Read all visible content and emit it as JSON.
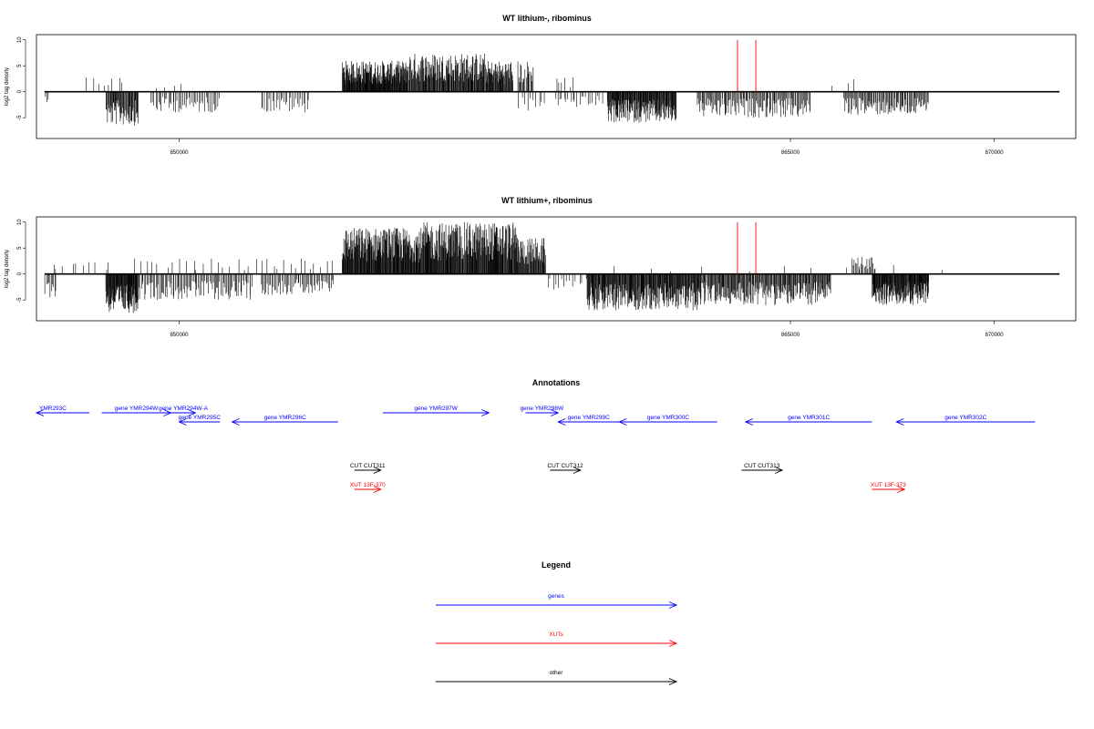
{
  "colors": {
    "genes": "#0000ff",
    "xuts": "#ff0000",
    "other": "#000000",
    "highlight": "#ff0000"
  },
  "chart_data": [
    {
      "type": "bar",
      "title": "WT lithium-, ribominus",
      "ylabel": "log2 tag density",
      "xlim": [
        846500,
        872000
      ],
      "ylim": [
        -9,
        11
      ],
      "yticks": [
        -5,
        0,
        5,
        10
      ],
      "xticks": [
        850000,
        865000,
        870000
      ],
      "xtick_labels": [
        "850000",
        "865000",
        "870000"
      ],
      "highlight_lines": [
        863700,
        864150
      ],
      "regions": [
        {
          "start": 846700,
          "end": 846800,
          "strand": -1,
          "amp": 2,
          "density": 3
        },
        {
          "start": 847700,
          "end": 848700,
          "strand": 1,
          "amp": 3,
          "density": 8
        },
        {
          "start": 848200,
          "end": 849000,
          "strand": -1,
          "amp": 6.5,
          "density": 55
        },
        {
          "start": 849300,
          "end": 850200,
          "strand": 1,
          "amp": 2,
          "density": 4
        },
        {
          "start": 849300,
          "end": 851000,
          "strand": -1,
          "amp": 4,
          "density": 48
        },
        {
          "start": 852000,
          "end": 853200,
          "strand": -1,
          "amp": 4,
          "density": 30
        },
        {
          "start": 854000,
          "end": 855600,
          "strand": 1,
          "amp": 6,
          "density": 170
        },
        {
          "start": 855600,
          "end": 857500,
          "strand": 1,
          "amp": 7.5,
          "density": 150
        },
        {
          "start": 857500,
          "end": 858200,
          "strand": 1,
          "amp": 6,
          "density": 60
        },
        {
          "start": 858300,
          "end": 858700,
          "strand": 1,
          "amp": 6,
          "density": 18
        },
        {
          "start": 858300,
          "end": 859000,
          "strand": -1,
          "amp": 4,
          "density": 10
        },
        {
          "start": 859200,
          "end": 859700,
          "strand": 1,
          "amp": 3,
          "density": 6
        },
        {
          "start": 859200,
          "end": 860400,
          "strand": -1,
          "amp": 3,
          "density": 22
        },
        {
          "start": 860500,
          "end": 862200,
          "strand": -1,
          "amp": 6,
          "density": 150
        },
        {
          "start": 862700,
          "end": 865500,
          "strand": -1,
          "amp": 5,
          "density": 120
        },
        {
          "start": 865800,
          "end": 866800,
          "strand": 1,
          "amp": 2.5,
          "density": 3
        },
        {
          "start": 866300,
          "end": 868400,
          "strand": -1,
          "amp": 4.5,
          "density": 95
        }
      ]
    },
    {
      "type": "bar",
      "title": "WT lithium+, ribominus",
      "ylabel": "log2 tag density",
      "xlim": [
        846500,
        872000
      ],
      "ylim": [
        -9,
        11
      ],
      "yticks": [
        -5,
        0,
        5,
        10
      ],
      "xticks": [
        850000,
        865000,
        870000
      ],
      "xtick_labels": [
        "850000",
        "865000",
        "870000"
      ],
      "highlight_lines": [
        863700,
        864150
      ],
      "regions": [
        {
          "start": 846700,
          "end": 847000,
          "strand": -1,
          "amp": 4.5,
          "density": 10
        },
        {
          "start": 846800,
          "end": 848400,
          "strand": 1,
          "amp": 2.5,
          "density": 10
        },
        {
          "start": 848200,
          "end": 849000,
          "strand": -1,
          "amp": 7.5,
          "density": 80
        },
        {
          "start": 848800,
          "end": 852000,
          "strand": 1,
          "amp": 3,
          "density": 20
        },
        {
          "start": 849000,
          "end": 851800,
          "strand": -1,
          "amp": 5,
          "density": 100
        },
        {
          "start": 852000,
          "end": 853800,
          "strand": 1,
          "amp": 3,
          "density": 14
        },
        {
          "start": 852000,
          "end": 853800,
          "strand": -1,
          "amp": 4,
          "density": 60
        },
        {
          "start": 854000,
          "end": 856000,
          "strand": 1,
          "amp": 9,
          "density": 200
        },
        {
          "start": 856000,
          "end": 858300,
          "strand": 1,
          "amp": 10,
          "density": 210
        },
        {
          "start": 858300,
          "end": 859000,
          "strand": 1,
          "amp": 7,
          "density": 55
        },
        {
          "start": 859000,
          "end": 860000,
          "strand": -1,
          "amp": 3,
          "density": 14
        },
        {
          "start": 860000,
          "end": 862800,
          "strand": -1,
          "amp": 7,
          "density": 230
        },
        {
          "start": 862800,
          "end": 866000,
          "strand": -1,
          "amp": 6,
          "density": 200
        },
        {
          "start": 860000,
          "end": 869000,
          "strand": 1,
          "amp": 1.8,
          "density": 10
        },
        {
          "start": 866500,
          "end": 867100,
          "strand": 1,
          "amp": 3.5,
          "density": 22
        },
        {
          "start": 867000,
          "end": 868400,
          "strand": -1,
          "amp": 6,
          "density": 140
        }
      ]
    }
  ],
  "annotations": {
    "title": "Annotations",
    "features": [
      {
        "label": "YMR293C",
        "start": 846500,
        "end": 847800,
        "strand": -1,
        "row": 0,
        "color": "#0000ff"
      },
      {
        "label": "gene YMR294W",
        "start": 848100,
        "end": 849800,
        "strand": 1,
        "row": 0,
        "color": "#0000ff"
      },
      {
        "label": "gene YMR294W-A",
        "start": 849800,
        "end": 850400,
        "strand": 1,
        "row": 0,
        "color": "#0000ff"
      },
      {
        "label": "gene YMR295C",
        "start": 850000,
        "end": 851000,
        "strand": -1,
        "row": 1,
        "color": "#0000ff"
      },
      {
        "label": "gene YMR296C",
        "start": 851300,
        "end": 853900,
        "strand": -1,
        "row": 1,
        "color": "#0000ff"
      },
      {
        "label": "gene YMR297W",
        "start": 855000,
        "end": 857600,
        "strand": 1,
        "row": 0,
        "color": "#0000ff"
      },
      {
        "label": "gene YMR298W",
        "start": 858500,
        "end": 859300,
        "strand": 1,
        "row": 0,
        "color": "#0000ff"
      },
      {
        "label": "gene YMR299C",
        "start": 859300,
        "end": 860800,
        "strand": -1,
        "row": 1,
        "color": "#0000ff"
      },
      {
        "label": "gene YMR300C",
        "start": 860800,
        "end": 863200,
        "strand": -1,
        "row": 1,
        "color": "#0000ff"
      },
      {
        "label": "gene YMR301C",
        "start": 863900,
        "end": 867000,
        "strand": -1,
        "row": 1,
        "color": "#0000ff"
      },
      {
        "label": "gene YMR302C",
        "start": 867600,
        "end": 871000,
        "strand": -1,
        "row": 1,
        "color": "#0000ff"
      },
      {
        "label": "CUT CUT311",
        "start": 854300,
        "end": 854950,
        "strand": 1,
        "row": 2,
        "color": "#000000"
      },
      {
        "label": "CUT CUT312",
        "start": 859100,
        "end": 859850,
        "strand": 1,
        "row": 2,
        "color": "#000000"
      },
      {
        "label": "CUT CUT313",
        "start": 863800,
        "end": 864800,
        "strand": 1,
        "row": 2,
        "color": "#000000"
      },
      {
        "label": "XUT 13F-370",
        "start": 854300,
        "end": 854950,
        "strand": 1,
        "row": 3,
        "color": "#ff0000"
      },
      {
        "label": "XUT 13F-373",
        "start": 867000,
        "end": 867800,
        "strand": 1,
        "row": 3,
        "color": "#ff0000"
      }
    ]
  },
  "legend": {
    "title": "Legend",
    "items": [
      {
        "label": "genes",
        "color": "#0000ff"
      },
      {
        "label": "XUTs",
        "color": "#ff0000"
      },
      {
        "label": "other",
        "color": "#000000"
      }
    ]
  }
}
